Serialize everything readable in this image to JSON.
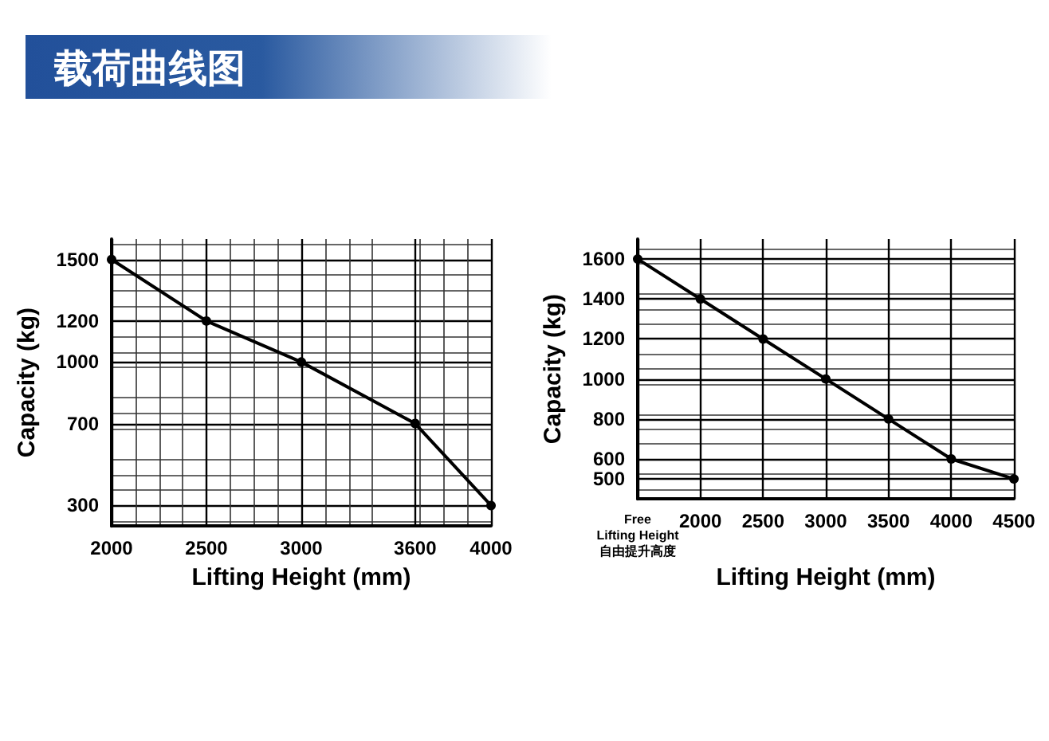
{
  "chart_data": [
    {
      "type": "line",
      "title": "载荷曲线图",
      "xlabel": "Lifting Height (mm)",
      "ylabel": "Capacity (kg)",
      "x": [
        2000,
        2500,
        3000,
        3600,
        4000
      ],
      "series": [
        {
          "color": "#000000",
          "values": [
            1500,
            1200,
            1000,
            700,
            300
          ]
        }
      ],
      "xlim": [
        2000,
        4000
      ],
      "xticks": [
        2000,
        2500,
        3000,
        3600,
        4000
      ],
      "ylim": [
        200,
        1600
      ],
      "yticks": [
        300,
        700,
        1000,
        1200,
        1500
      ],
      "grid": true,
      "marker": "circle",
      "line_style": "solid"
    },
    {
      "type": "line",
      "xlabel": "Lifting Height (mm)",
      "ylabel": "Capacity (kg)",
      "categories": [
        "Free\nLifting Height\n自由提升高度",
        "2000",
        "2500",
        "3000",
        "3500",
        "4000",
        "4500"
      ],
      "series": [
        {
          "color": "#000000",
          "values": [
            1600,
            1400,
            1200,
            1000,
            800,
            600,
            500
          ]
        }
      ],
      "ylim": [
        400,
        1700
      ],
      "yticks": [
        500,
        600,
        800,
        1000,
        1200,
        1400,
        1600
      ],
      "grid": true,
      "marker": "circle",
      "line_style": "solid"
    }
  ]
}
